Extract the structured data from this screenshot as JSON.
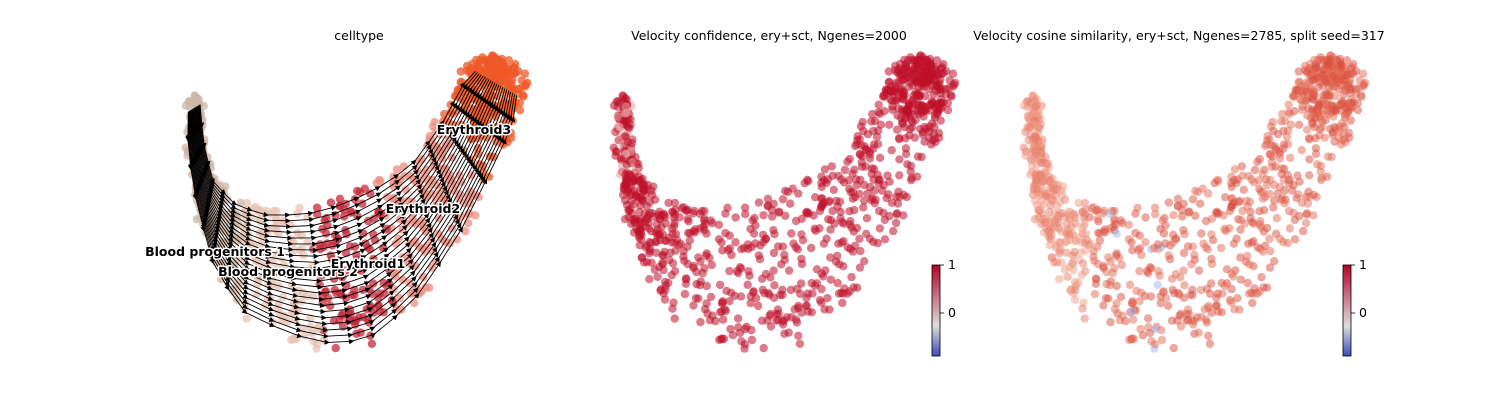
{
  "chart_data": [
    {
      "type": "scatter",
      "title": "celltype",
      "overlay": "velocity-streamlines",
      "clusters": [
        {
          "name": "Blood progenitors 1",
          "color": "#cdb5a5"
        },
        {
          "name": "Blood progenitors 2",
          "color": "#e8c4b4"
        },
        {
          "name": "Erythroid1",
          "color": "#c52a3a"
        },
        {
          "name": "Erythroid2",
          "color": "#ef8e80"
        },
        {
          "name": "Erythroid3",
          "color": "#ef5a28"
        }
      ]
    },
    {
      "type": "scatter",
      "title": "Velocity confidence, ery+sct, Ngenes=2000",
      "point_color": "#c0102a",
      "colorbar": {
        "ticks": [
          {
            "label": "1",
            "value": 1
          },
          {
            "label": "0",
            "value": 0
          }
        ],
        "vmin": -0.5,
        "vmax": 1,
        "cmap": "coolwarm"
      }
    },
    {
      "type": "scatter",
      "title": "Velocity cosine similarity, ery+sct, Ngenes=2785, split seed=317",
      "point_color": "#dc5a4a",
      "colorbar": {
        "ticks": [
          {
            "label": "1",
            "value": 1
          },
          {
            "label": "0",
            "value": 0
          }
        ],
        "vmin": -0.5,
        "vmax": 1,
        "cmap": "coolwarm"
      }
    }
  ]
}
